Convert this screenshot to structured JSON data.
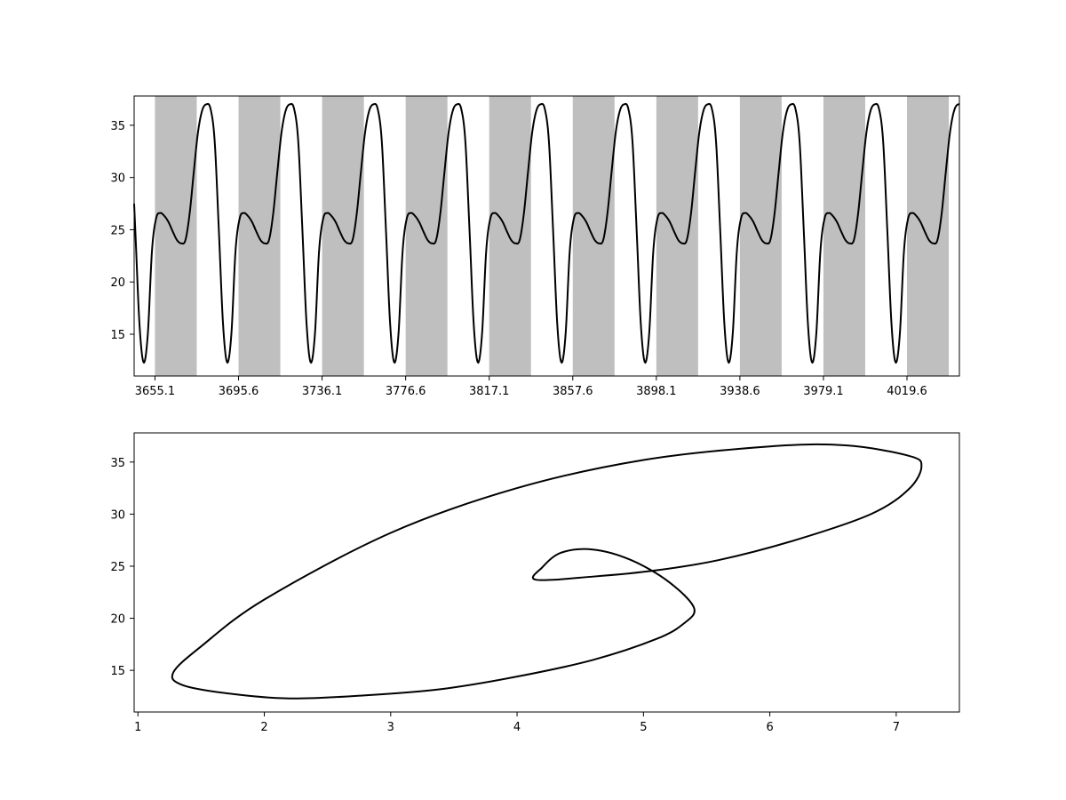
{
  "chart_data": [
    {
      "type": "line",
      "title": "",
      "xlabel": "",
      "ylabel": "",
      "xlim": [
        3645.0,
        4045.0
      ],
      "ylim": [
        11.0,
        37.8
      ],
      "grid": false,
      "line_color": "#000000",
      "band_color": "#bfbfbf",
      "period": 40.5,
      "first_peak_x": 3682.0,
      "x_tick_labels": [
        "3655.1",
        "3695.6",
        "3736.1",
        "3776.6",
        "3817.1",
        "3857.6",
        "3898.1",
        "3938.6",
        "3979.1",
        "4019.6"
      ],
      "x_tick_values": [
        3655.1,
        3695.6,
        3736.1,
        3776.6,
        3817.1,
        3857.6,
        3898.1,
        3938.6,
        3979.1,
        4019.6
      ],
      "y_ticks": [
        15,
        20,
        25,
        30,
        35
      ],
      "shaded_bands": [
        [
          3655.1,
          3675.35
        ],
        [
          3695.6,
          3715.85
        ],
        [
          3736.1,
          3756.35
        ],
        [
          3776.6,
          3796.85
        ],
        [
          3817.1,
          3837.35
        ],
        [
          3857.6,
          3877.85
        ],
        [
          3898.1,
          3918.35
        ],
        [
          3938.6,
          3958.85
        ],
        [
          3979.1,
          3999.35
        ],
        [
          4019.6,
          4039.85
        ]
      ],
      "one_cycle_waveform": {
        "phase": [
          0.0,
          0.05,
          0.1,
          0.15,
          0.2,
          0.25,
          0.3,
          0.35,
          0.4,
          0.45,
          0.5,
          0.55,
          0.6,
          0.65,
          0.7,
          0.75,
          0.8,
          0.85,
          0.9,
          0.95
        ],
        "value": [
          36.6,
          33.5,
          25.0,
          16.0,
          12.3,
          15.0,
          23.0,
          26.1,
          26.6,
          26.3,
          25.7,
          24.8,
          24.0,
          23.7,
          24.0,
          26.5,
          30.5,
          34.3,
          36.4,
          37.0
        ]
      }
    },
    {
      "type": "line",
      "title": "",
      "xlabel": "",
      "ylabel": "",
      "xlim": [
        0.97,
        7.5
      ],
      "ylim": [
        11.0,
        37.8
      ],
      "grid": false,
      "line_color": "#000000",
      "x_ticks": [
        1,
        2,
        3,
        4,
        5,
        6,
        7
      ],
      "y_ticks": [
        15,
        20,
        25,
        30,
        35
      ],
      "x": [
        4.15,
        4.6,
        5.1,
        5.6,
        6.2,
        6.8,
        7.1,
        7.2,
        7.1,
        6.6,
        6.0,
        5.0,
        4.0,
        3.0,
        2.0,
        1.5,
        1.28,
        1.35,
        1.7,
        2.2,
        2.8,
        3.4,
        4.0,
        4.6,
        5.1,
        5.32,
        5.4,
        5.2,
        4.9,
        4.6,
        4.35,
        4.2,
        4.15
      ],
      "y": [
        23.7,
        24.0,
        24.6,
        25.6,
        27.5,
        30.0,
        32.4,
        34.6,
        35.6,
        36.6,
        36.5,
        35.2,
        32.5,
        28.2,
        21.8,
        17.3,
        14.8,
        13.6,
        12.8,
        12.3,
        12.6,
        13.2,
        14.4,
        16.0,
        18.0,
        19.5,
        21.0,
        23.5,
        25.6,
        26.6,
        26.3,
        24.9,
        23.7
      ]
    }
  ]
}
